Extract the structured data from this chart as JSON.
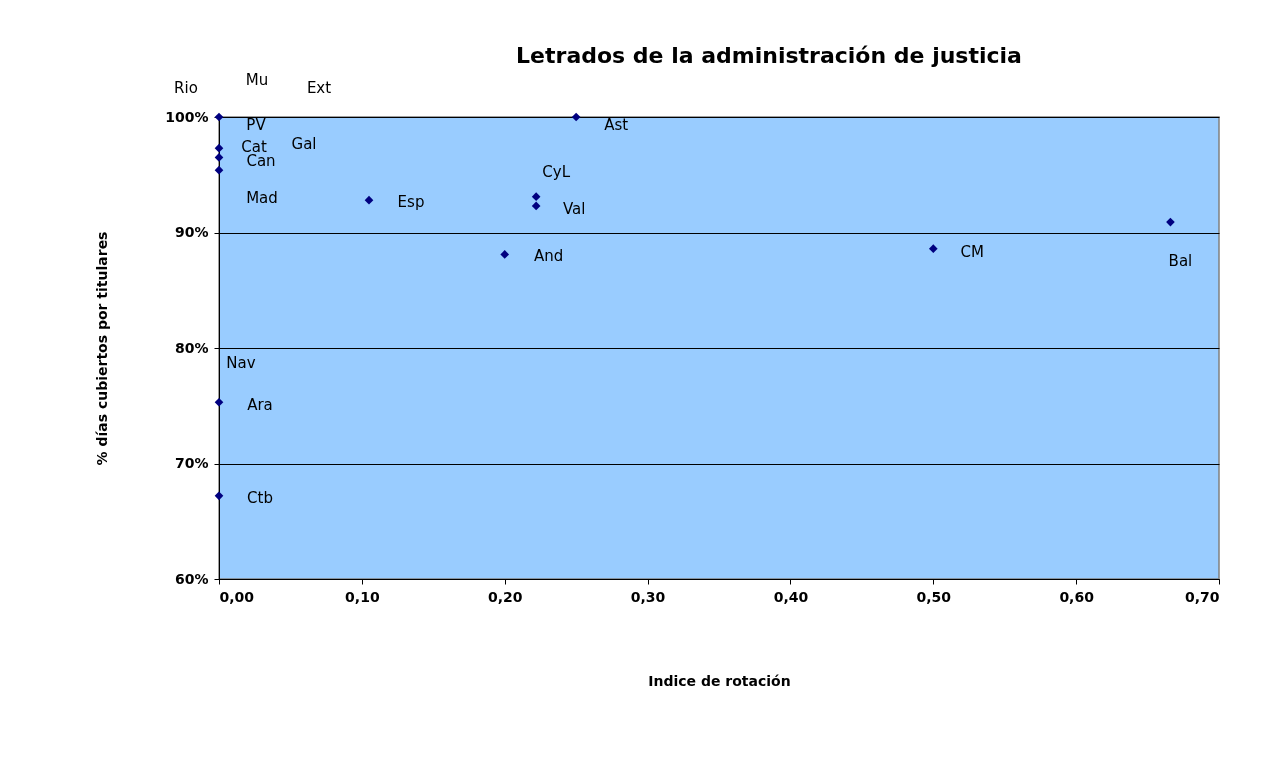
{
  "chart_data": {
    "type": "scatter",
    "title": "Letrados de la administración de justicia",
    "xlabel": "Indice de rotación",
    "ylabel": "% días cubiertos por titulares",
    "x": [
      0,
      0,
      0,
      0,
      0.105,
      0.2,
      0.222,
      0.222,
      0.25,
      0.5,
      0.666,
      0,
      0
    ],
    "series": [
      {
        "color": "#000080",
        "values": [
          100,
          97.3,
          96.5,
          95.4,
          92.8,
          88.1,
          93.1,
          92.3,
          100,
          88.6,
          90.9,
          75.3,
          67.2
        ]
      }
    ],
    "marker": "diamond",
    "grid": "y",
    "xlim": [
      0,
      0.7
    ],
    "ylim": [
      60,
      100
    ],
    "xticks": [
      {
        "value": 0,
        "label": "0,00"
      },
      {
        "value": 0.1,
        "label": "0,10"
      },
      {
        "value": 0.2,
        "label": "0,20"
      },
      {
        "value": 0.3,
        "label": "0,30"
      },
      {
        "value": 0.4,
        "label": "0,40"
      },
      {
        "value": 0.5,
        "label": "0,50"
      },
      {
        "value": 0.6,
        "label": "0,60"
      },
      {
        "value": 0.7,
        "label": "0,70"
      }
    ],
    "yticks": [
      {
        "value": 60,
        "label": "60%"
      },
      {
        "value": 70,
        "label": "70%"
      },
      {
        "value": 80,
        "label": "80%"
      },
      {
        "value": 90,
        "label": "90%"
      },
      {
        "value": 100,
        "label": "100%"
      }
    ],
    "annotations": [
      {
        "text": "Rio",
        "x": 0,
        "y": 100
      },
      {
        "text": "Mu",
        "x": 0,
        "y": 100
      },
      "Ext",
      {
        "text": "PV",
        "x": 0,
        "y": 100
      },
      "Gal",
      "Nav",
      {
        "text": "Cat",
        "x": 0,
        "y": 97.3
      },
      {
        "text": "Can",
        "x": 0,
        "y": 96.5
      },
      {
        "text": "Mad",
        "x": 0,
        "y": 95.4
      },
      {
        "text": "Ara",
        "x": 0,
        "y": 75.3
      },
      {
        "text": "Ctb",
        "x": 0,
        "y": 67.2
      },
      {
        "text": "Esp",
        "x": 0.105,
        "y": 92.8
      },
      {
        "text": "And",
        "x": 0.2,
        "y": 88.1
      },
      {
        "text": "CyL",
        "x": 0.222,
        "y": 93.1
      },
      {
        "text": "Val",
        "x": 0.222,
        "y": 92.3
      },
      {
        "text": "Ast",
        "x": 0.25,
        "y": 100
      },
      {
        "text": "CM",
        "x": 0.5,
        "y": 88.6
      },
      {
        "text": "Bal",
        "x": 0.666,
        "y": 90.9
      }
    ]
  }
}
